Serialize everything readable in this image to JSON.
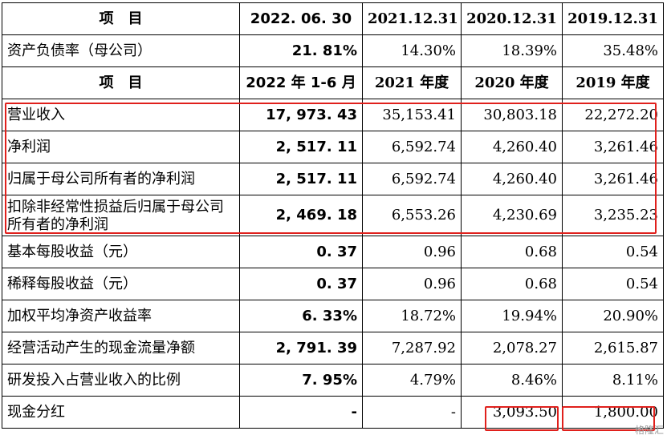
{
  "header1": [
    "项　目",
    "2022. 06. 30",
    "2021.12.31",
    "2020.12.31",
    "2019.12.31"
  ],
  "row_debt": [
    "资产负债率（母公司）",
    "21. 81%",
    "14.30%",
    "18.39%",
    "35.48%"
  ],
  "header2": [
    "项　目",
    "2022 年 1-6 月",
    "2021 年度",
    "2020 年度",
    "2019 年度"
  ],
  "rows": [
    [
      "营业收入",
      "17, 973. 43",
      "35,153.41",
      "30,803.18",
      "22,272.20"
    ],
    [
      "净利润",
      "2, 517. 11",
      "6,592.74",
      "4,260.40",
      "3,261.46"
    ],
    [
      "归属于母公司所有者的净利润",
      "2, 517. 11",
      "6,592.74",
      "4,260.40",
      "3,261.46"
    ],
    [
      "扣除非经常性损益后归属于母公司所有者的净利润",
      "2, 469. 18",
      "6,553.26",
      "4,230.69",
      "3,235.23"
    ],
    [
      "基本每股收益（元）",
      "0. 37",
      "0.96",
      "0.68",
      "0.54"
    ],
    [
      "稀释每股收益（元）",
      "0. 37",
      "0.96",
      "0.68",
      "0.54"
    ],
    [
      "加权平均净资产收益率",
      "6. 33%",
      "18.72%",
      "19.94%",
      "20.90%"
    ],
    [
      "经营活动产生的现金流量净额",
      "2, 791. 39",
      "7,287.92",
      "2,078.27",
      "2,615.87"
    ],
    [
      "研发投入占营业收入的比例",
      "7. 95%",
      "4.79%",
      "8.46%",
      "8.11%"
    ],
    [
      "现金分红",
      "-",
      "-",
      "3,093.50",
      "1,800.00"
    ]
  ],
  "watermark": "格隆汇",
  "colors": {
    "highlight": "#e0201c",
    "border": "#000000",
    "text": "#000000"
  }
}
